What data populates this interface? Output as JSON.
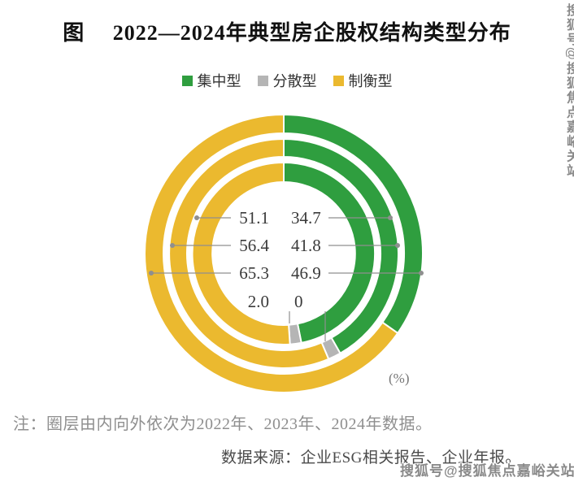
{
  "title": "图　 2022—2024年典型房企股权结构类型分布",
  "legend": {
    "items": [
      {
        "label": "集中型",
        "color": "#2f9e3f"
      },
      {
        "label": "分散型",
        "color": "#b5b5b5"
      },
      {
        "label": "制衡型",
        "color": "#ebb92f"
      }
    ]
  },
  "unit_label": "(%)",
  "note": "注：圈层由内向外依次为2022年、2023年、2024年数据。",
  "source": "数据来源：企业ESG相关报告、企业年报。",
  "watermark": {
    "text": "搜狐号@搜狐焦点嘉峪关站"
  },
  "chart_data": {
    "type": "pie",
    "subtype": "concentric-donut-3-rings",
    "title": "2022—2024年典型房企股权结构类型分布",
    "categories": [
      "集中型",
      "分散型",
      "制衡型"
    ],
    "colors": [
      "#2f9e3f",
      "#b5b5b5",
      "#ebb92f"
    ],
    "unit": "%",
    "rings_inner_to_outer": [
      {
        "year": "2022",
        "values": [
          46.9,
          2.0,
          51.1
        ]
      },
      {
        "year": "2023",
        "values": [
          41.8,
          1.8,
          56.4
        ]
      },
      {
        "year": "2024",
        "values": [
          34.7,
          0,
          65.3
        ]
      }
    ],
    "value_labels": {
      "left_column": [
        "51.1",
        "56.4",
        "65.3",
        "2.0"
      ],
      "right_column": [
        "34.7",
        "41.8",
        "46.9",
        "0"
      ]
    }
  }
}
